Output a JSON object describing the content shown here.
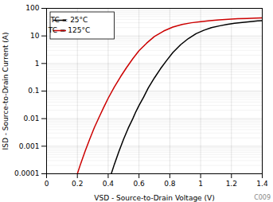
{
  "chart_data": {
    "type": "line",
    "xlabel": "VSD - Source-to-Drain Voltage (V)",
    "ylabel": "ISD - Source-to-Drain Current (A)",
    "log": "y",
    "grid": true,
    "legend": "upper left",
    "xlim": [
      0,
      1.4
    ],
    "ylim": [
      0.0001,
      100
    ],
    "xticks": [
      0,
      0.2,
      0.4,
      0.6,
      0.8,
      1,
      1.2,
      1.4
    ],
    "yticks": [
      0.0001,
      0.001,
      0.01,
      0.1,
      1,
      10,
      100
    ],
    "annotations": [
      "C009"
    ],
    "series": [
      {
        "name": "TC = 25°C",
        "color": "#000000",
        "x": [
          0.42,
          0.44,
          0.47,
          0.5,
          0.53,
          0.56,
          0.58,
          0.6,
          0.63,
          0.66,
          0.7,
          0.74,
          0.78,
          0.82,
          0.87,
          0.92,
          0.97,
          1.02,
          1.07,
          1.12,
          1.17,
          1.22,
          1.27,
          1.32,
          1.37,
          1.4
        ],
        "values": [
          0.0001,
          0.00022,
          0.00065,
          0.0018,
          0.0045,
          0.01,
          0.018,
          0.03,
          0.06,
          0.13,
          0.3,
          0.65,
          1.3,
          2.5,
          4.8,
          8.0,
          12,
          16,
          20,
          23,
          26,
          29,
          31,
          33,
          35,
          36
        ]
      },
      {
        "name": "TC = 125°C",
        "color": "#cc0000",
        "x": [
          0.2,
          0.22,
          0.25,
          0.28,
          0.31,
          0.34,
          0.37,
          0.4,
          0.44,
          0.48,
          0.52,
          0.56,
          0.6,
          0.65,
          0.7,
          0.76,
          0.82,
          0.88,
          0.94,
          1.0,
          1.06,
          1.12,
          1.18,
          1.24,
          1.3,
          1.36,
          1.4
        ],
        "values": [
          0.0001,
          0.00022,
          0.00065,
          0.0018,
          0.0047,
          0.011,
          0.025,
          0.055,
          0.14,
          0.33,
          0.72,
          1.5,
          2.9,
          5.5,
          9.5,
          15,
          21,
          26,
          30,
          33,
          36,
          38,
          40,
          42,
          43,
          44,
          45
        ]
      }
    ]
  }
}
